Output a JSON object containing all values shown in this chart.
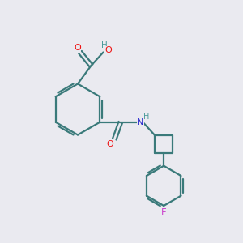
{
  "background_color": "#eaeaf0",
  "bond_color": "#3a7a7a",
  "atom_colors": {
    "O": "#ee1111",
    "N": "#2222cc",
    "F": "#cc44cc",
    "H": "#4a9a9a",
    "C": "#000000"
  },
  "figsize": [
    3.0,
    3.0
  ],
  "dpi": 100
}
